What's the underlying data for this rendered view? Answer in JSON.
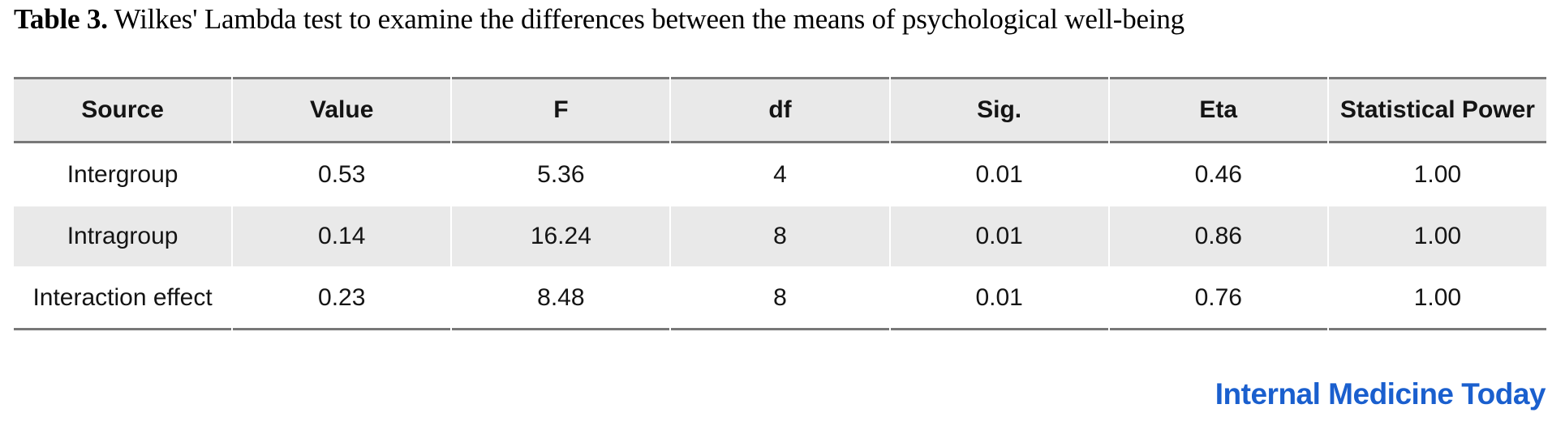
{
  "caption": {
    "label": "Table 3.",
    "text": " Wilkes' Lambda test to examine the differences between the means of psychological well-being"
  },
  "table": {
    "columns": [
      "Source",
      "Value",
      "F",
      "df",
      "Sig.",
      "Eta",
      "Statistical Power"
    ],
    "rows": [
      [
        "Intergroup",
        "0.53",
        "5.36",
        "4",
        "0.01",
        "0.46",
        "1.00"
      ],
      [
        "Intragroup",
        "0.14",
        "16.24",
        "8",
        "0.01",
        "0.86",
        "1.00"
      ],
      [
        "Interaction effect",
        "0.23",
        "8.48",
        "8",
        "0.01",
        "0.76",
        "1.00"
      ]
    ]
  },
  "footer": {
    "journal": "Internal Medicine Today",
    "brand_color": "#1a5fce"
  },
  "colors": {
    "header_background": "#e9e9e9",
    "banded_row_background": "#e9e9e9",
    "rule_gray": "#787878",
    "text": "#141414"
  }
}
